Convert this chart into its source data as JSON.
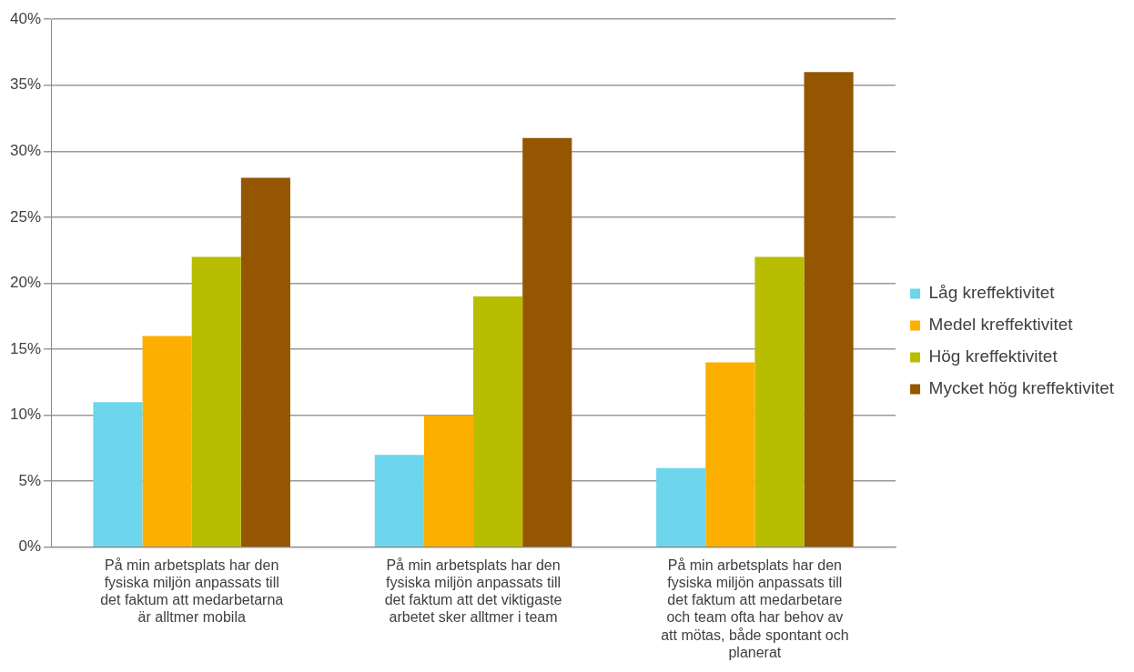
{
  "chart_data": {
    "type": "bar",
    "categories": [
      "På min arbetsplats har den fysiska miljön anpassats till det faktum att medarbetarna är alltmer mobila",
      "På min arbetsplats har den fysiska miljön anpassats till det faktum att det viktigaste arbetet sker alltmer i team",
      "På min arbetsplats har den fysiska miljön anpassats till det faktum att medarbetare och team ofta har behov av att mötas, både spontant och planerat"
    ],
    "series": [
      {
        "name": "Låg kreffektivitet",
        "color": "#6dd5ec",
        "values": [
          11,
          7,
          6
        ]
      },
      {
        "name": "Medel kreffektivitet",
        "color": "#fdaf00",
        "values": [
          16,
          10,
          14
        ]
      },
      {
        "name": "Hög kreffektivitet",
        "color": "#b9bd00",
        "values": [
          22,
          19,
          22
        ]
      },
      {
        "name": "Mycket hög kreffektivitet",
        "color": "#945600",
        "values": [
          28,
          31,
          36
        ]
      }
    ],
    "ylim": [
      0,
      40
    ],
    "yticks": [
      {
        "value": 0,
        "label": "0%"
      },
      {
        "value": 5,
        "label": "5%"
      },
      {
        "value": 10,
        "label": "10%"
      },
      {
        "value": 15,
        "label": "15%"
      },
      {
        "value": 20,
        "label": "20%"
      },
      {
        "value": 25,
        "label": "25%"
      },
      {
        "value": 30,
        "label": "30%"
      },
      {
        "value": 35,
        "label": "35%"
      },
      {
        "value": 40,
        "label": "40%"
      }
    ],
    "grid": "y",
    "legend": "right"
  }
}
